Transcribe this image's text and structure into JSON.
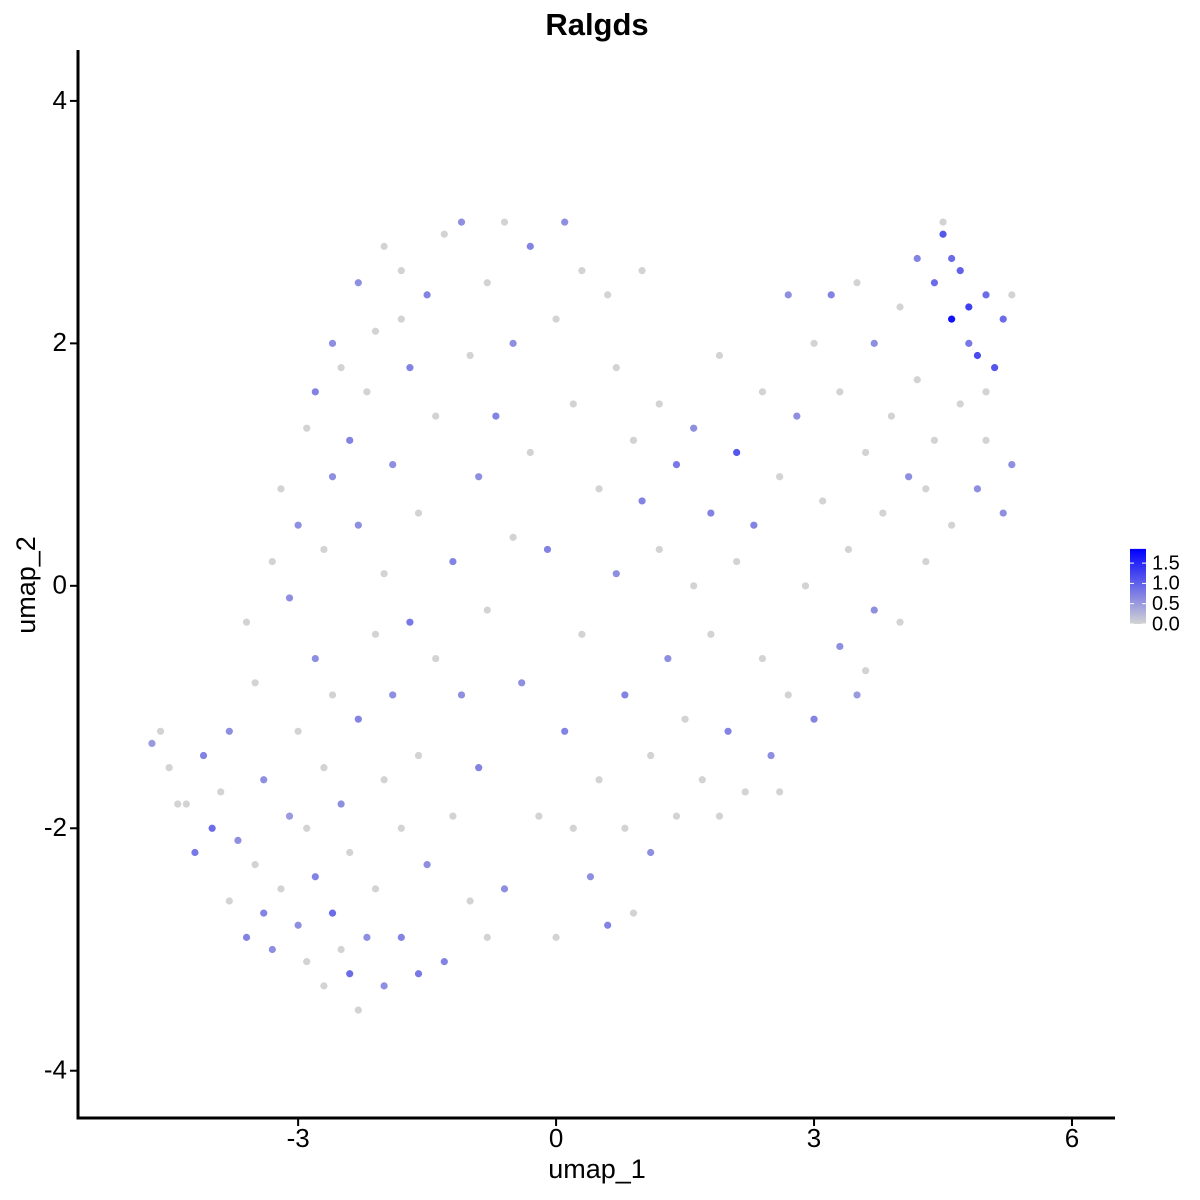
{
  "chart_data": {
    "type": "scatter",
    "title": "Ralgds",
    "x_label": "umap_1",
    "y_label": "umap_2",
    "xlim": [
      -5.56,
      6.5
    ],
    "ylim": [
      -4.39,
      4.42
    ],
    "xticks": [
      -3,
      0,
      3,
      6
    ],
    "yticks": [
      -4,
      -2,
      0,
      2,
      4
    ],
    "grid": false,
    "x": [
      -4.7,
      -4.6,
      -4.5,
      -4.3,
      -4.2,
      -4.1,
      -4.0,
      -3.9,
      -3.8,
      -3.7,
      -3.6,
      -3.5,
      -3.4,
      -3.3,
      -3.2,
      -3.1,
      -3.0,
      -3.0,
      -2.9,
      -2.9,
      -2.8,
      -2.8,
      -2.7,
      -2.7,
      -2.6,
      -2.6,
      -2.5,
      -2.5,
      -2.4,
      -2.3,
      -2.3,
      -2.2,
      -2.1,
      -2.1,
      -2.0,
      -2.0,
      -1.9,
      -1.8,
      -1.8,
      -1.7,
      -3.6,
      -3.5,
      -3.3,
      -3.1,
      -3.2,
      -3.0,
      -2.9,
      -2.8,
      -2.7,
      -2.6,
      -2.5,
      -2.4,
      -2.3,
      -2.2,
      -2.1,
      -2.0,
      -1.9,
      -1.8,
      -1.7,
      -1.6,
      -2.6,
      -2.3,
      -2.0,
      -1.8,
      -1.5,
      -1.4,
      -1.3,
      -1.2,
      -1.1,
      -1.0,
      -1.6,
      -1.5,
      -1.4,
      -1.3,
      -1.2,
      -1.1,
      -1.0,
      -0.9,
      -0.8,
      -0.8,
      -0.9,
      -0.8,
      -0.7,
      -0.6,
      -0.5,
      -0.5,
      -0.4,
      -0.3,
      -0.3,
      -0.2,
      -0.1,
      0.0,
      0.0,
      0.1,
      0.1,
      0.2,
      0.3,
      0.3,
      0.4,
      0.5,
      0.5,
      0.6,
      0.6,
      0.7,
      0.7,
      0.8,
      0.8,
      0.9,
      0.9,
      1.0,
      1.0,
      1.1,
      1.1,
      1.2,
      1.2,
      1.3,
      1.4,
      1.4,
      1.5,
      1.6,
      1.6,
      1.7,
      1.8,
      1.8,
      1.9,
      2.0,
      2.1,
      2.1,
      2.2,
      2.3,
      2.4,
      2.4,
      2.5,
      2.6,
      2.7,
      2.7,
      2.8,
      2.9,
      3.0,
      3.0,
      3.1,
      3.2,
      3.3,
      3.3,
      3.4,
      3.5,
      3.5,
      3.6,
      3.7,
      3.7,
      3.8,
      3.9,
      4.0,
      4.0,
      4.1,
      4.2,
      4.2,
      4.3,
      4.4,
      4.4,
      4.5,
      4.5,
      4.6,
      4.6,
      4.7,
      4.7,
      4.8,
      4.9,
      4.9,
      5.0,
      5.0,
      5.1,
      5.2,
      5.2,
      5.3,
      5.3,
      4.8,
      4.6,
      5.0,
      4.3,
      -4.4,
      -3.8,
      -3.4,
      -2.4,
      -1.6,
      -0.6,
      0.2,
      1.9,
      2.6,
      3.6
    ],
    "y": [
      -1.3,
      -1.2,
      -1.5,
      -1.8,
      -2.2,
      -1.4,
      -2.0,
      -1.7,
      -2.6,
      -2.1,
      -2.9,
      -2.3,
      -1.6,
      -3.0,
      -2.5,
      -1.9,
      -1.2,
      -2.8,
      -2.0,
      -3.1,
      -0.6,
      -2.4,
      -1.5,
      -3.3,
      -2.7,
      -0.9,
      -1.8,
      -3.0,
      -2.2,
      -3.5,
      -1.1,
      -2.9,
      -0.4,
      -2.5,
      -3.3,
      -1.6,
      -0.9,
      -2.0,
      -2.9,
      -0.3,
      -0.3,
      -0.8,
      0.2,
      -0.1,
      0.8,
      0.5,
      1.3,
      1.6,
      0.3,
      0.9,
      1.8,
      1.2,
      0.5,
      1.6,
      2.1,
      0.1,
      1.0,
      2.6,
      1.8,
      0.6,
      2.0,
      2.5,
      2.8,
      2.2,
      2.4,
      1.4,
      2.9,
      0.2,
      3.0,
      1.9,
      -1.4,
      -2.3,
      -0.6,
      -3.1,
      -1.9,
      -0.9,
      -2.6,
      -1.5,
      -0.2,
      -2.9,
      0.9,
      2.5,
      1.4,
      3.0,
      0.4,
      2.0,
      -0.8,
      1.1,
      2.8,
      -1.9,
      0.3,
      2.2,
      -2.9,
      3.0,
      -1.2,
      1.5,
      -0.4,
      2.6,
      -2.4,
      0.8,
      -1.6,
      2.4,
      -2.8,
      0.1,
      1.8,
      -0.9,
      -2.0,
      1.2,
      -2.7,
      0.7,
      2.6,
      -1.4,
      -2.2,
      1.5,
      0.3,
      -0.6,
      -1.9,
      1.0,
      -1.1,
      0.0,
      1.3,
      -1.6,
      0.6,
      -0.4,
      1.9,
      -1.2,
      1.1,
      0.2,
      -1.7,
      0.5,
      1.6,
      -0.6,
      -1.4,
      0.9,
      2.4,
      -0.9,
      1.4,
      0.0,
      -1.1,
      2.0,
      0.7,
      2.4,
      -0.5,
      1.6,
      0.3,
      2.5,
      -0.9,
      1.1,
      -0.2,
      2.0,
      0.6,
      1.4,
      2.3,
      -0.3,
      0.9,
      1.7,
      2.7,
      0.2,
      1.2,
      2.5,
      3.0,
      2.9,
      2.2,
      0.5,
      2.6,
      1.5,
      2.0,
      1.9,
      0.8,
      2.4,
      1.2,
      1.8,
      2.2,
      0.6,
      1.0,
      2.4,
      2.3,
      2.7,
      1.6,
      0.8,
      -1.8,
      -1.2,
      -2.7,
      -3.2,
      -3.2,
      -2.5,
      -2.0,
      -1.9,
      -1.7,
      -0.7
    ],
    "expression": [
      0.5,
      0,
      0,
      0,
      0.8,
      0.7,
      0.9,
      0,
      0,
      0.6,
      0.7,
      0,
      0.6,
      0.6,
      0,
      0.5,
      0,
      0.6,
      0,
      0,
      0.6,
      0.7,
      0,
      0,
      0.9,
      0,
      0.6,
      0,
      0,
      0,
      0.7,
      0.6,
      0,
      0,
      0.6,
      0,
      0.6,
      0,
      0.7,
      0.8,
      0,
      0,
      0,
      0.6,
      0,
      0.6,
      0,
      0.7,
      0,
      0.6,
      0,
      0.7,
      0.6,
      0,
      0,
      0,
      0.6,
      0,
      0.7,
      0,
      0.6,
      0.6,
      0,
      0,
      0.7,
      0,
      0,
      0.7,
      0.6,
      0,
      0,
      0.6,
      0,
      0.7,
      0,
      0.6,
      0,
      0.7,
      0,
      0,
      0.6,
      0,
      0.7,
      0,
      0,
      0.6,
      0.6,
      0,
      0.7,
      0,
      0.7,
      0,
      0,
      0.6,
      0.7,
      0,
      0,
      0,
      0.6,
      0,
      0,
      0,
      0.7,
      0.6,
      0,
      0.7,
      0,
      0,
      0,
      0.7,
      0,
      0,
      0.6,
      0,
      0,
      0.6,
      0,
      0.8,
      0,
      0,
      0.6,
      0,
      0.7,
      0,
      0,
      0.7,
      1.1,
      0,
      0,
      0.7,
      0,
      0,
      0.6,
      0,
      0.6,
      0,
      0.6,
      0,
      0.7,
      0,
      0,
      0.7,
      0.6,
      0,
      0,
      0,
      0.5,
      0,
      0.6,
      0.6,
      0,
      0,
      0,
      0,
      0.6,
      0,
      0.7,
      0,
      0,
      0.9,
      0,
      1.1,
      1.7,
      0,
      1.0,
      0,
      0.8,
      1.2,
      0.6,
      0.9,
      0,
      1.1,
      0.9,
      0.6,
      0.6,
      0,
      1.3,
      0.9,
      0,
      0,
      0,
      0.6,
      0.7,
      0.9,
      0.8,
      0.6,
      0,
      0,
      0,
      0
    ],
    "colorbar": {
      "lim": [
        0,
        1.85
      ],
      "colors": [
        "#d3d3d3",
        "#0000ff"
      ],
      "ticks": [
        {
          "value": 0,
          "label": "0.0"
        },
        {
          "value": 0.5,
          "label": "0.5"
        },
        {
          "value": 1,
          "label": "1.0"
        },
        {
          "value": 1.5,
          "label": "1.5"
        }
      ]
    }
  }
}
